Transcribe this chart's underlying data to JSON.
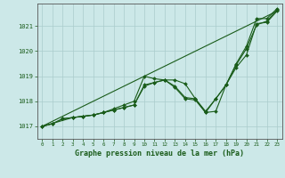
{
  "title": "Graphe pression niveau de la mer (hPa)",
  "background_color": "#cce8e8",
  "grid_color": "#aacccc",
  "line_color": "#1a5c1a",
  "xlim": [
    -0.5,
    23.5
  ],
  "ylim": [
    1016.5,
    1021.9
  ],
  "yticks": [
    1017,
    1018,
    1019,
    1020,
    1021
  ],
  "xticks": [
    0,
    1,
    2,
    3,
    4,
    5,
    6,
    7,
    8,
    9,
    10,
    11,
    12,
    13,
    14,
    15,
    16,
    17,
    18,
    19,
    20,
    21,
    22,
    23
  ],
  "line1_x": [
    0,
    23
  ],
  "line1_y": [
    1017.0,
    1021.6
  ],
  "series2_x": [
    0,
    1,
    2,
    3,
    4,
    5,
    6,
    7,
    8,
    9,
    10,
    11,
    12,
    13,
    14,
    15,
    16,
    17,
    18,
    19,
    20,
    21,
    22,
    23
  ],
  "series2_y": [
    1017.0,
    1017.1,
    1017.3,
    1017.35,
    1017.4,
    1017.45,
    1017.55,
    1017.65,
    1017.75,
    1017.85,
    1018.6,
    1018.75,
    1018.85,
    1018.85,
    1018.7,
    1018.1,
    1017.55,
    1018.1,
    1018.65,
    1019.35,
    1019.85,
    1021.1,
    1021.15,
    1021.6
  ],
  "series3_x": [
    0,
    1,
    2,
    3,
    4,
    5,
    6,
    7,
    8,
    9,
    10,
    11,
    12,
    13,
    14,
    15,
    16,
    17,
    18,
    19,
    20,
    21,
    22,
    23
  ],
  "series3_y": [
    1017.0,
    1017.1,
    1017.3,
    1017.35,
    1017.4,
    1017.45,
    1017.55,
    1017.65,
    1017.75,
    1017.85,
    1018.65,
    1018.75,
    1018.85,
    1018.6,
    1018.15,
    1018.1,
    1017.6,
    1018.1,
    1018.65,
    1019.45,
    1020.1,
    1021.05,
    1021.2,
    1021.65
  ],
  "series4_x": [
    0,
    3,
    4,
    5,
    6,
    7,
    8,
    9,
    10,
    11,
    12,
    13,
    14,
    15,
    16,
    17,
    18,
    19,
    20,
    21,
    22,
    23
  ],
  "series4_y": [
    1017.0,
    1017.35,
    1017.4,
    1017.45,
    1017.55,
    1017.7,
    1017.85,
    1018.0,
    1019.0,
    1018.9,
    1018.85,
    1018.55,
    1018.1,
    1018.05,
    1017.55,
    1017.6,
    1018.65,
    1019.5,
    1020.2,
    1021.3,
    1021.3,
    1021.7
  ]
}
